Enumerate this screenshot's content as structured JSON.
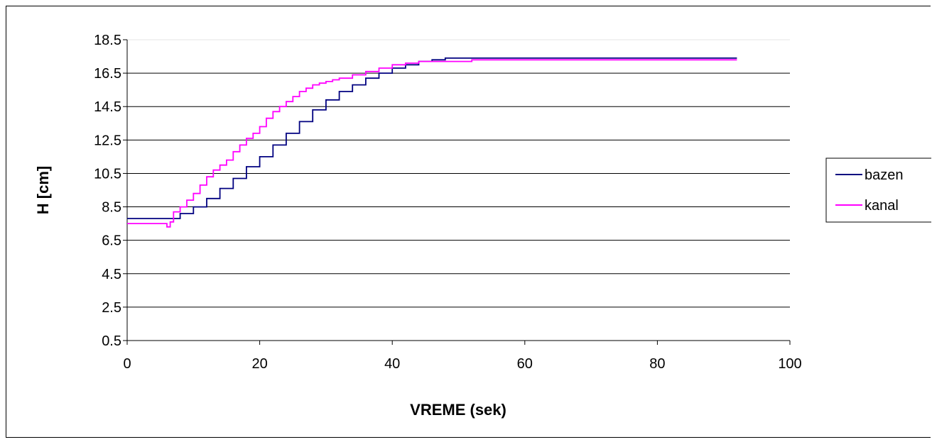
{
  "chart_data": {
    "type": "line",
    "title": "",
    "xlabel": "VREME (sek)",
    "ylabel": "H [cm]",
    "xlim": [
      0,
      100
    ],
    "ylim": [
      0.5,
      18.5
    ],
    "xticks": [
      "0",
      "20",
      "40",
      "60",
      "80",
      "100"
    ],
    "yticks": [
      "0.5",
      "2.5",
      "4.5",
      "6.5",
      "8.5",
      "10.5",
      "12.5",
      "14.5",
      "16.5",
      "18.5"
    ],
    "grid": true,
    "legend_position": "right",
    "series": [
      {
        "name": "bazen",
        "color": "#000080",
        "x": [
          0,
          7,
          8,
          10,
          12,
          14,
          16,
          18,
          20,
          22,
          24,
          26,
          28,
          30,
          32,
          34,
          36,
          38,
          40,
          42,
          44,
          46,
          48,
          92
        ],
        "y": [
          7.8,
          7.8,
          8.1,
          8.5,
          9.0,
          9.6,
          10.2,
          10.9,
          11.5,
          12.2,
          12.9,
          13.6,
          14.3,
          14.9,
          15.4,
          15.8,
          16.2,
          16.5,
          16.8,
          17.0,
          17.2,
          17.3,
          17.4,
          17.4
        ]
      },
      {
        "name": "kanal",
        "color": "#ff00ff",
        "x": [
          0,
          5.7,
          6,
          6.5,
          7,
          8,
          9,
          10,
          11,
          12,
          13,
          14,
          15,
          16,
          17,
          18,
          19,
          20,
          21,
          22,
          23,
          24,
          25,
          26,
          27,
          28,
          29,
          30,
          31,
          32,
          34,
          36,
          38,
          40,
          42,
          44,
          46,
          48,
          50,
          52,
          92
        ],
        "y": [
          7.5,
          7.5,
          7.3,
          7.6,
          8.2,
          8.5,
          8.9,
          9.3,
          9.8,
          10.3,
          10.7,
          11.0,
          11.3,
          11.8,
          12.2,
          12.6,
          12.9,
          13.3,
          13.8,
          14.2,
          14.5,
          14.8,
          15.1,
          15.4,
          15.6,
          15.8,
          15.9,
          16.0,
          16.1,
          16.2,
          16.4,
          16.6,
          16.8,
          17.0,
          17.1,
          17.2,
          17.2,
          17.2,
          17.2,
          17.3,
          17.3
        ]
      }
    ]
  }
}
